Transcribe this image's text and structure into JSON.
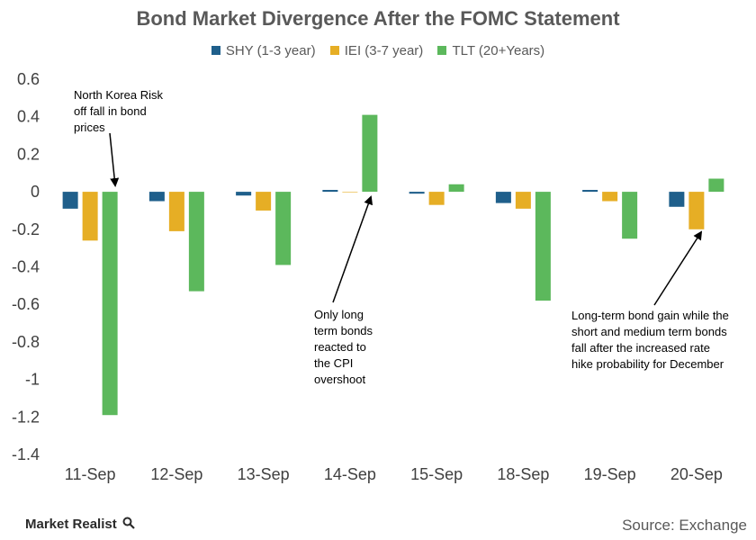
{
  "chart_data": {
    "type": "bar",
    "title": "Bond Market Divergence After the FOMC Statement",
    "categories": [
      "11-Sep",
      "12-Sep",
      "13-Sep",
      "14-Sep",
      "15-Sep",
      "18-Sep",
      "19-Sep",
      "20-Sep"
    ],
    "series": [
      {
        "name": "SHY (1-3 year)",
        "color": "#1f5f8b",
        "values": [
          -0.09,
          -0.05,
          -0.02,
          0.01,
          -0.01,
          -0.06,
          0.01,
          -0.08
        ]
      },
      {
        "name": "IEI (3-7 year)",
        "color": "#e6ae25",
        "values": [
          -0.26,
          -0.21,
          -0.1,
          0.0,
          -0.07,
          -0.09,
          -0.05,
          -0.2
        ]
      },
      {
        "name": "TLT (20+Years)",
        "color": "#5cb85c",
        "values": [
          -1.19,
          -0.53,
          -0.39,
          0.41,
          0.04,
          -0.58,
          -0.25,
          0.07
        ]
      }
    ],
    "ylim": [
      -1.4,
      0.6
    ],
    "yticks": [
      "0.6",
      "0.4",
      "0.2",
      "0",
      "-0.2",
      "-0.4",
      "-0.6",
      "-0.8",
      "-1",
      "-1.2",
      "-1.4"
    ],
    "legend": "top",
    "grid": false,
    "annotations": [
      {
        "lines": [
          "North Korea Risk",
          "off fall in bond",
          "prices"
        ]
      },
      {
        "lines": [
          "Only long",
          "term bonds",
          "reacted to",
          "the CPI",
          "overshoot"
        ]
      },
      {
        "lines": [
          "Long-term bond gain while the",
          "short and medium term bonds",
          "fall after the increased rate",
          "hike probability for December"
        ]
      }
    ]
  },
  "footer": {
    "brand": "Market Realist",
    "source": "Source: Exchange"
  }
}
